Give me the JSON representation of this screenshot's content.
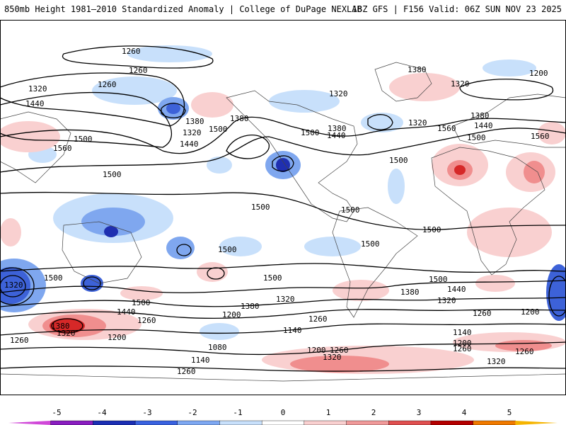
{
  "header": {
    "left_title": "850mb Height 1981–2010 Standardized Anomaly | College of DuPage NEXLAB",
    "right_title": "18Z GFS | F156 Valid: 06Z SUN NOV 23 2025"
  },
  "map": {
    "contour_labels": [
      "1260",
      "1260",
      "1320",
      "1260",
      "1440",
      "1380",
      "1320",
      "1380",
      "1500",
      "1440",
      "1500",
      "1560",
      "1500",
      "1500",
      "1500",
      "1500",
      "1380",
      "1440",
      "1320",
      "1320",
      "1320",
      "1380",
      "1200",
      "1380",
      "1440",
      "1500",
      "1560",
      "1500",
      "1560",
      "1500",
      "1500",
      "1500",
      "1500",
      "1500",
      "1320",
      "1500",
      "1440",
      "1380",
      "1320",
      "1500",
      "1440",
      "1380",
      "1320",
      "1260",
      "1200",
      "1320",
      "1260",
      "1200",
      "1260",
      "1140",
      "1080",
      "1140",
      "1200",
      "1260",
      "1320",
      "1260",
      "1200",
      "1260",
      "1140",
      "1200",
      "1260",
      "1380",
      "1320",
      "1260"
    ],
    "anomaly_colors": {
      "neg_weak": "#c8e0fb",
      "neg_mod": "#7fa7ef",
      "neg_strong": "#3d62d8",
      "neg_extreme": "#1f2fb0",
      "pos_weak": "#f9d0d0",
      "pos_mod": "#f08e8e",
      "pos_strong": "#d62828",
      "pos_extreme": "#a50000"
    }
  },
  "colorbar": {
    "ticks": [
      "-5",
      "-4",
      "-3",
      "-2",
      "-1",
      "0",
      "1",
      "2",
      "3",
      "4",
      "5"
    ],
    "segments": [
      {
        "color": "#d048d8"
      },
      {
        "color": "#8a1dc0"
      },
      {
        "color": "#1c2fb4"
      },
      {
        "color": "#3a62e0"
      },
      {
        "color": "#7ea8f2"
      },
      {
        "color": "#c8e0fb"
      },
      {
        "color": "#ffffff"
      },
      {
        "color": "#f9d0d0"
      },
      {
        "color": "#f09a9a"
      },
      {
        "color": "#e05050"
      },
      {
        "color": "#b40000"
      },
      {
        "color": "#f07a00"
      },
      {
        "color": "#f5b400"
      }
    ]
  }
}
